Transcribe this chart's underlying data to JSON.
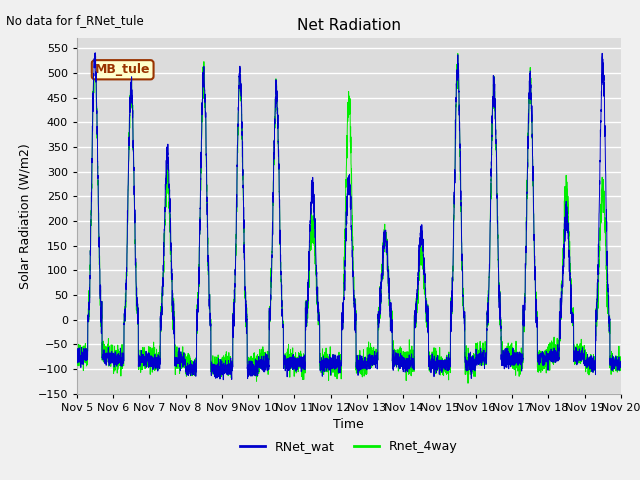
{
  "title": "Net Radiation",
  "xlabel": "Time",
  "ylabel": "Solar Radiation (W/m2)",
  "ylim": [
    -150,
    570
  ],
  "yticks": [
    -150,
    -100,
    -50,
    0,
    50,
    100,
    150,
    200,
    250,
    300,
    350,
    400,
    450,
    500,
    550
  ],
  "no_data_text": "No data for f_RNet_tule",
  "legend_label1": "RNet_wat",
  "legend_label2": "Rnet_4way",
  "line_color1": "#0000cc",
  "line_color2": "#00ee00",
  "annotation_text": "MB_tule",
  "annotation_bg": "#ffffcc",
  "annotation_border": "#993300",
  "fig_bg": "#f0f0f0",
  "plot_bg": "#dcdcdc",
  "xtick_labels": [
    "Nov 5",
    "Nov 6",
    "Nov 7",
    "Nov 8",
    "Nov 9",
    "Nov 10",
    "Nov 11",
    "Nov 12",
    "Nov 13",
    "Nov 14",
    "Nov 15",
    "Nov 16",
    "Nov 17",
    "Nov 18",
    "Nov 19",
    "Nov 20"
  ],
  "day_peaks_blue": [
    540,
    470,
    335,
    500,
    500,
    465,
    270,
    280,
    175,
    180,
    510,
    475,
    480,
    205,
    510
  ],
  "day_peaks_green": [
    535,
    465,
    295,
    490,
    490,
    460,
    200,
    440,
    175,
    140,
    500,
    470,
    475,
    255,
    260
  ],
  "night_vals": [
    -75,
    -80,
    -85,
    -100,
    -100,
    -90,
    -90,
    -90,
    -85,
    -90,
    -90,
    -80,
    -80,
    -75,
    -90
  ],
  "n_days": 15
}
